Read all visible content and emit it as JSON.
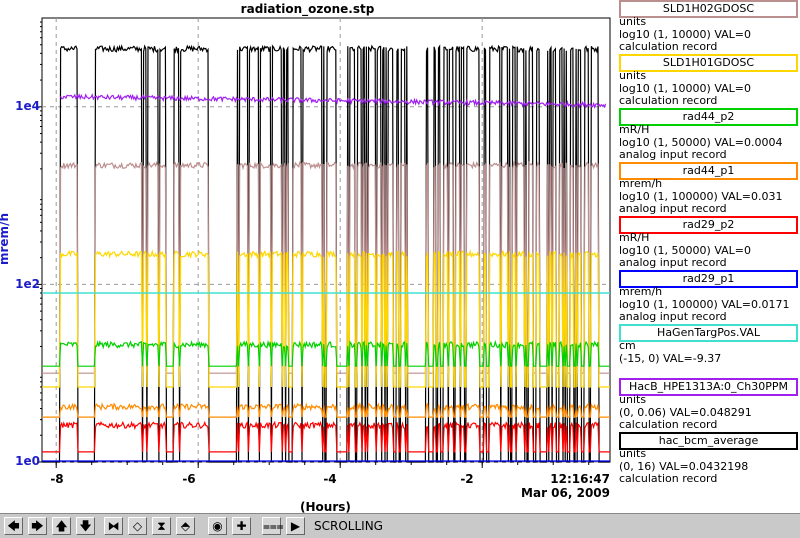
{
  "window": {
    "title": "radiation_ozone.stp"
  },
  "colors": {
    "background": "#ffffff",
    "axis_text": "#1c1cc8",
    "toolbar_bg": "#c9c9c9"
  },
  "chart_data": {
    "type": "line",
    "title": "radiation_ozone.stp",
    "xlabel": "(Hours)",
    "ylabel": "mrem/h",
    "y_scale": "log10",
    "y_tick_labels": [
      "1e0",
      "1e2",
      "1e4"
    ],
    "x_tick_labels": [
      "-8",
      "-6",
      "-4",
      "-2"
    ],
    "xlim": [
      -8.2,
      -0.2
    ],
    "ylim": [
      1,
      100000
    ],
    "grid": true,
    "legend_position": "right",
    "end_time": "12:16:47",
    "end_date": "Mar 06, 2009",
    "series": [
      {
        "name": "SLD1H02GDOSC",
        "color": "#bc8f8f",
        "low": 10,
        "high": 2200,
        "segments": "a"
      },
      {
        "name": "SLD1H01GDOSC",
        "color": "#ffd700",
        "low": 7,
        "high": 220,
        "segments": "a"
      },
      {
        "name": "rad44_p2",
        "color": "#00d000",
        "low": 12,
        "high": 21,
        "segments": "a"
      },
      {
        "name": "rad44_p1",
        "color": "#ff8c00",
        "low": 3.2,
        "high": 4.2,
        "segments": "a"
      },
      {
        "name": "rad29_p2",
        "color": "#ff0000",
        "low": 1.3,
        "high": 2.6,
        "segments": "a"
      },
      {
        "name": "rad29_p1",
        "color": "#0000ff",
        "value": 1,
        "segments": "none"
      },
      {
        "name": "HaGenTargPos.VAL",
        "color": "#40e0d0",
        "value": 80
      },
      {
        "name": "HacB_HPE1313A:0_Ch30PPM",
        "color": "#a020f0",
        "start": 13000,
        "end": 10500
      },
      {
        "name": "hac_bcm_average",
        "color": "#000000",
        "low": 1,
        "high": 45000,
        "segments": "a"
      }
    ]
  },
  "legend": [
    {
      "name": "SLD1H02GDOSC",
      "color": "#bc8f8f",
      "units": "units",
      "range": "log10 (1, 10000) VAL=0",
      "record": "calculation record"
    },
    {
      "name": "SLD1H01GDOSC",
      "color": "#ffd700",
      "units": "units",
      "range": "log10 (1, 10000) VAL=0",
      "record": "calculation record"
    },
    {
      "name": "rad44_p2",
      "color": "#00d000",
      "units": "mR/H",
      "range": "log10 (1, 50000) VAL=0.0004",
      "record": "analog input record"
    },
    {
      "name": "rad44_p1",
      "color": "#ff8c00",
      "units": "mrem/h",
      "range": "log10 (1, 100000) VAL=0.031",
      "record": "analog input record"
    },
    {
      "name": "rad29_p2",
      "color": "#ff0000",
      "units": "mR/H",
      "range": "log10 (1, 50000) VAL=0",
      "record": "analog input record"
    },
    {
      "name": "rad29_p1",
      "color": "#0000ff",
      "units": "mrem/h",
      "range": "log10 (1, 100000) VAL=0.0171",
      "record": "analog input record"
    },
    {
      "name": "HaGenTargPos.VAL",
      "color": "#40e0d0",
      "units": "cm",
      "range": "(-15, 0) VAL=-9.37",
      "record": ""
    },
    {
      "name": "HacB_HPE1313A:0_Ch30PPM",
      "color": "#a020f0",
      "units": "units",
      "range": "(0, 0.06) VAL=0.048291",
      "record": "calculation record"
    },
    {
      "name": "hac_bcm_average",
      "color": "#000000",
      "units": "units",
      "range": "(0, 16) VAL=0.0432198",
      "record": "calculation record"
    }
  ],
  "toolbar": {
    "buttons": [
      {
        "icon": "arrow-left-icon",
        "glyph": "🡄"
      },
      {
        "icon": "arrow-right-icon",
        "glyph": "🡆"
      },
      {
        "icon": "arrow-up-icon",
        "glyph": "🡅"
      },
      {
        "icon": "arrow-down-icon",
        "glyph": "🡇"
      },
      {
        "icon": "zoom-in-horizontal-icon",
        "glyph": "⧓"
      },
      {
        "icon": "zoom-out-horizontal-icon",
        "glyph": "◇"
      },
      {
        "icon": "zoom-in-vertical-icon",
        "glyph": "⧗"
      },
      {
        "icon": "zoom-out-vertical-icon",
        "glyph": "⬘"
      },
      {
        "icon": "autoscale-icon",
        "glyph": "◉"
      },
      {
        "icon": "add-pv-icon",
        "glyph": "✚"
      },
      {
        "icon": "scroll-mode-icon",
        "glyph": "⩶"
      },
      {
        "icon": "play-icon",
        "glyph": "▶"
      }
    ],
    "mode": "SCROLLING"
  }
}
